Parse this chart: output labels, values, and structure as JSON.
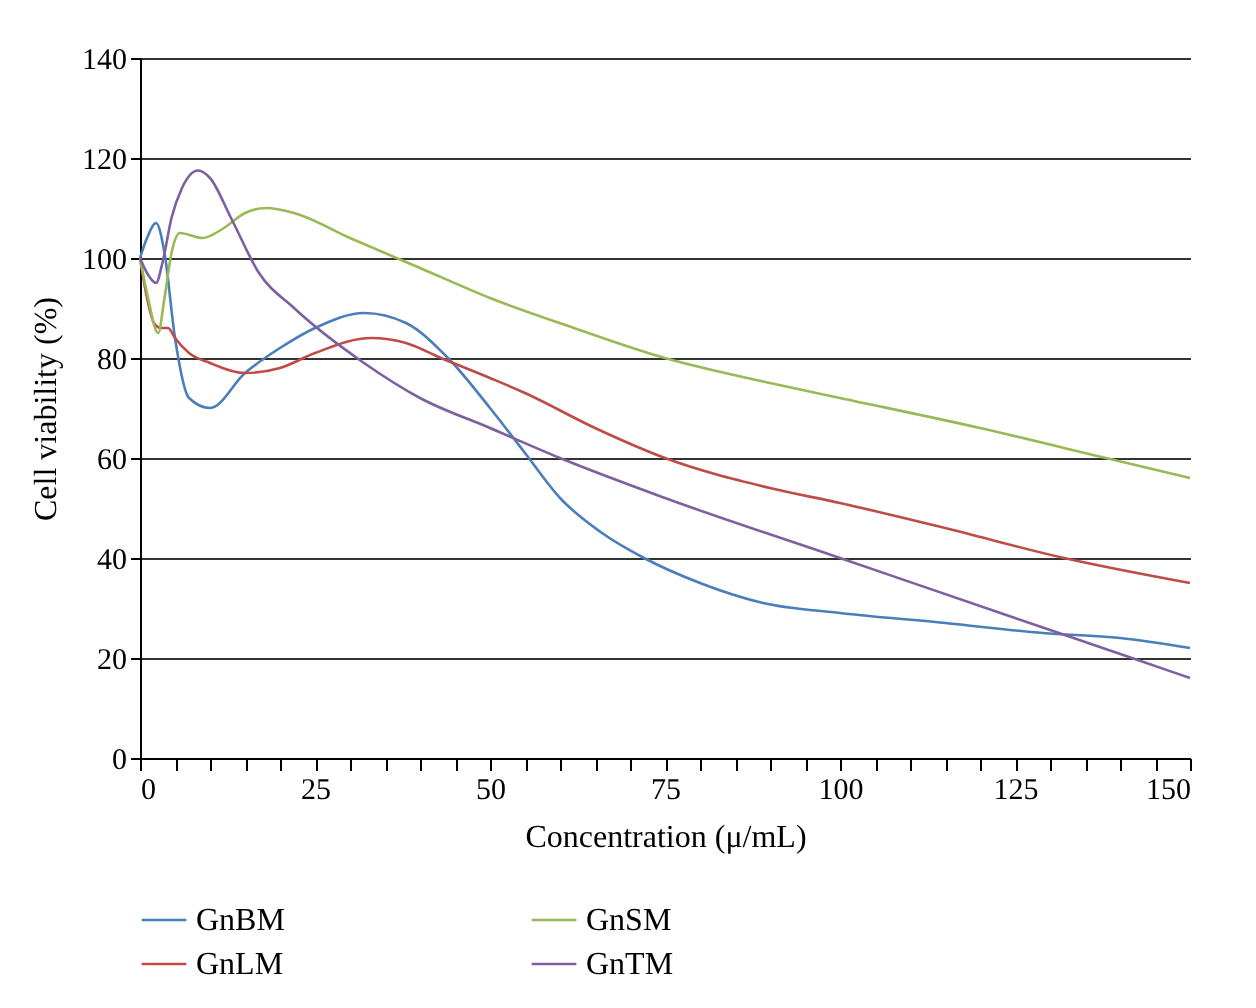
{
  "chart_data": {
    "type": "line",
    "xlabel": "Concentration (μ/mL)",
    "ylabel": "Cell viability (%)",
    "xlim": [
      0,
      150
    ],
    "ylim": [
      0,
      140
    ],
    "xticks": [
      0,
      {
        "value": 5,
        "label": null
      },
      {
        "value": 10,
        "label": null
      },
      {
        "value": 15,
        "label": null
      },
      {
        "value": 20,
        "label": null
      },
      25,
      {
        "value": 30,
        "label": null
      },
      {
        "value": 35,
        "label": null
      },
      {
        "value": 40,
        "label": null
      },
      {
        "value": 45,
        "label": null
      },
      50,
      {
        "value": 55,
        "label": null
      },
      {
        "value": 60,
        "label": null
      },
      {
        "value": 65,
        "label": null
      },
      {
        "value": 70,
        "label": null
      },
      75,
      {
        "value": 80,
        "label": null
      },
      {
        "value": 85,
        "label": null
      },
      {
        "value": 90,
        "label": null
      },
      {
        "value": 95,
        "label": null
      },
      100,
      {
        "value": 105,
        "label": null
      },
      {
        "value": 110,
        "label": null
      },
      {
        "value": 115,
        "label": null
      },
      {
        "value": 120,
        "label": null
      },
      125,
      {
        "value": 130,
        "label": null
      },
      {
        "value": 135,
        "label": null
      },
      {
        "value": 140,
        "label": null
      },
      {
        "value": 145,
        "label": null
      },
      150
    ],
    "yticks": [
      0,
      20,
      40,
      60,
      80,
      100,
      120,
      140
    ],
    "grid": "y",
    "legend": "bottom",
    "line_style": "solid",
    "series": [
      {
        "name": "GnBM",
        "color": "#4a7ebb",
        "x": [
          0,
          1,
          2.3,
          3.5,
          5,
          7,
          10,
          15,
          20,
          25,
          32,
          38,
          44,
          50,
          55,
          60,
          66,
          72,
          80,
          89,
          100,
          115,
          129,
          140,
          150
        ],
        "values": [
          100,
          104,
          107,
          101,
          84,
          72,
          70,
          77,
          82,
          86,
          89,
          87,
          80,
          70,
          61,
          52,
          45,
          40,
          35,
          31,
          29,
          27,
          25,
          24,
          22
        ]
      },
      {
        "name": "GnLM",
        "color": "#be4b48",
        "x": [
          0,
          1,
          2,
          3,
          4,
          5,
          7,
          10,
          15,
          20,
          25,
          33,
          38,
          43,
          50,
          55,
          65,
          75,
          90,
          100,
          115,
          132,
          150
        ],
        "values": [
          100,
          92,
          87,
          86,
          86,
          84,
          81,
          79,
          77,
          78,
          81,
          84,
          83,
          80,
          76,
          73,
          66,
          60,
          54,
          51,
          46,
          40,
          35
        ]
      },
      {
        "name": "GnSM",
        "color": "#98b954",
        "x": [
          0,
          1,
          2.6,
          3.5,
          4.5,
          5.7,
          8.9,
          12,
          15,
          18,
          22,
          30,
          40,
          50,
          62,
          75,
          90,
          100,
          120,
          138,
          150
        ],
        "values": [
          100,
          93,
          85,
          92,
          101,
          105,
          104,
          106,
          109,
          110,
          109,
          104,
          98,
          92,
          86,
          80,
          75,
          72,
          66,
          60,
          56
        ]
      },
      {
        "name": "GnTM",
        "color": "#7d60a0",
        "x": [
          0,
          1,
          2.3,
          3.2,
          4.5,
          6,
          8.3,
          10,
          13,
          17,
          22,
          32,
          40,
          50,
          60,
          75,
          100,
          125,
          141.7,
          150
        ],
        "values": [
          100,
          97,
          95,
          99,
          108,
          114,
          117.5,
          116,
          108,
          97,
          90,
          79,
          72,
          66,
          60,
          52,
          40,
          28,
          20,
          16
        ]
      }
    ]
  }
}
